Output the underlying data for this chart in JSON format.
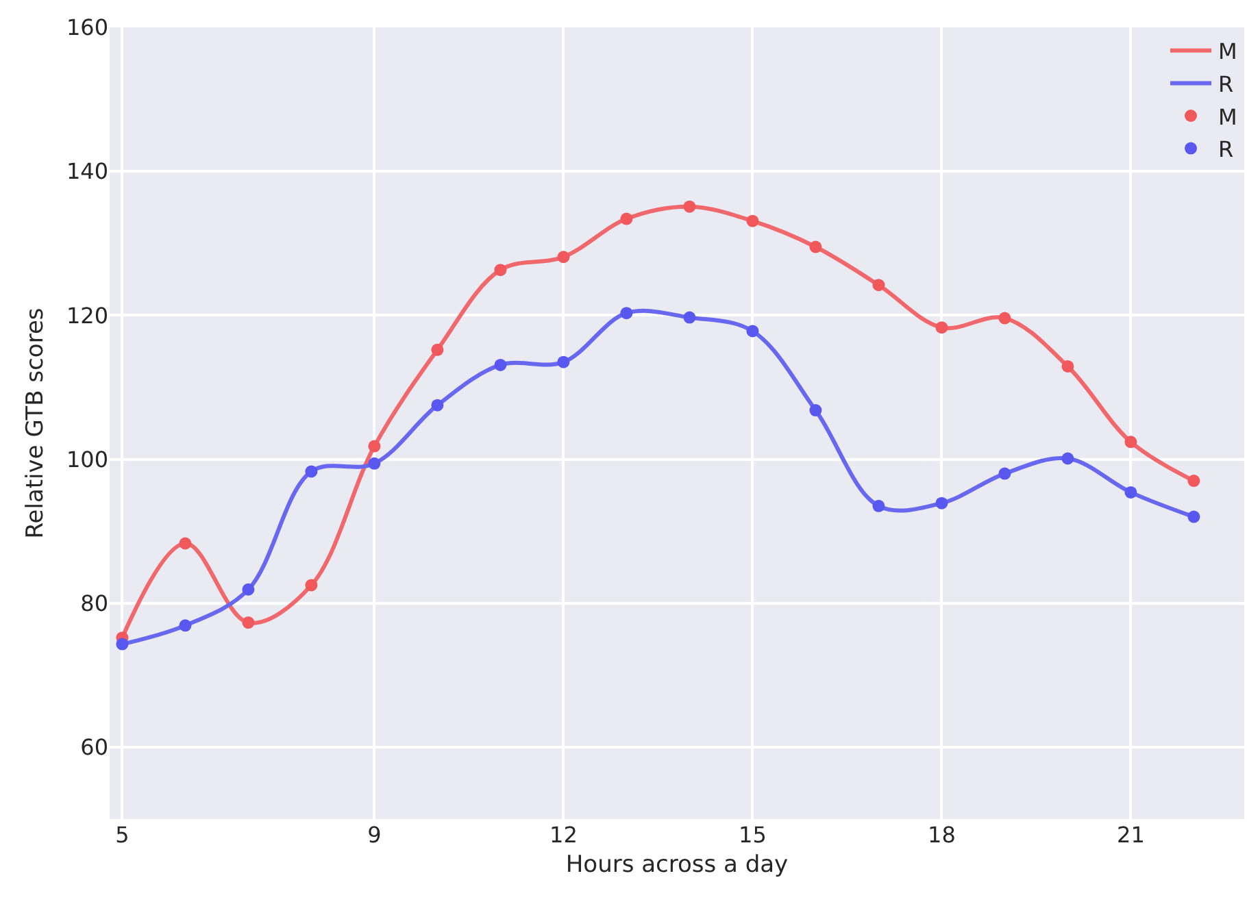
{
  "chart_data": {
    "type": "line",
    "xlabel": "Hours across a day",
    "ylabel": "Relative GTB scores",
    "x": [
      5,
      6,
      7,
      8,
      9,
      10,
      11,
      12,
      13,
      14,
      15,
      16,
      17,
      18,
      19,
      20,
      21,
      22
    ],
    "series": [
      {
        "name": "M",
        "marker": "none",
        "color": "#f0686c",
        "values": [
          75.2,
          88.3,
          77.3,
          82.5,
          101.8,
          115.2,
          126.3,
          128.1,
          133.4,
          135.1,
          133.1,
          129.5,
          124.2,
          118.3,
          119.6,
          112.9,
          102.4,
          97.0
        ]
      },
      {
        "name": "R",
        "marker": "none",
        "color": "#6767f0",
        "values": [
          74.3,
          76.9,
          81.9,
          98.3,
          99.4,
          107.5,
          113.1,
          113.5,
          120.3,
          119.7,
          117.8,
          106.8,
          93.5,
          93.9,
          98.0,
          100.1,
          95.4,
          92.0
        ]
      },
      {
        "name": "M",
        "type": "scatter",
        "marker": "circle",
        "color": "#f0585c",
        "values": [
          75.2,
          88.3,
          77.3,
          82.5,
          101.8,
          115.2,
          126.3,
          128.1,
          133.4,
          135.1,
          133.1,
          129.5,
          124.2,
          118.3,
          119.6,
          112.9,
          102.4,
          97.0
        ]
      },
      {
        "name": "R",
        "type": "scatter",
        "marker": "circle",
        "color": "#5858f0",
        "values": [
          74.3,
          76.9,
          81.9,
          98.3,
          99.4,
          107.5,
          113.1,
          113.5,
          120.3,
          119.7,
          117.8,
          106.8,
          93.5,
          93.9,
          98.0,
          100.1,
          95.4,
          92.0
        ]
      }
    ],
    "xlim": [
      4.8,
      22.8
    ],
    "xticks": [
      5,
      9,
      12,
      15,
      18,
      21
    ],
    "ylim": [
      50,
      160
    ],
    "yticks": [
      60,
      80,
      100,
      120,
      140,
      160
    ],
    "grid": true,
    "legend": "top right",
    "line_style": "solid"
  }
}
